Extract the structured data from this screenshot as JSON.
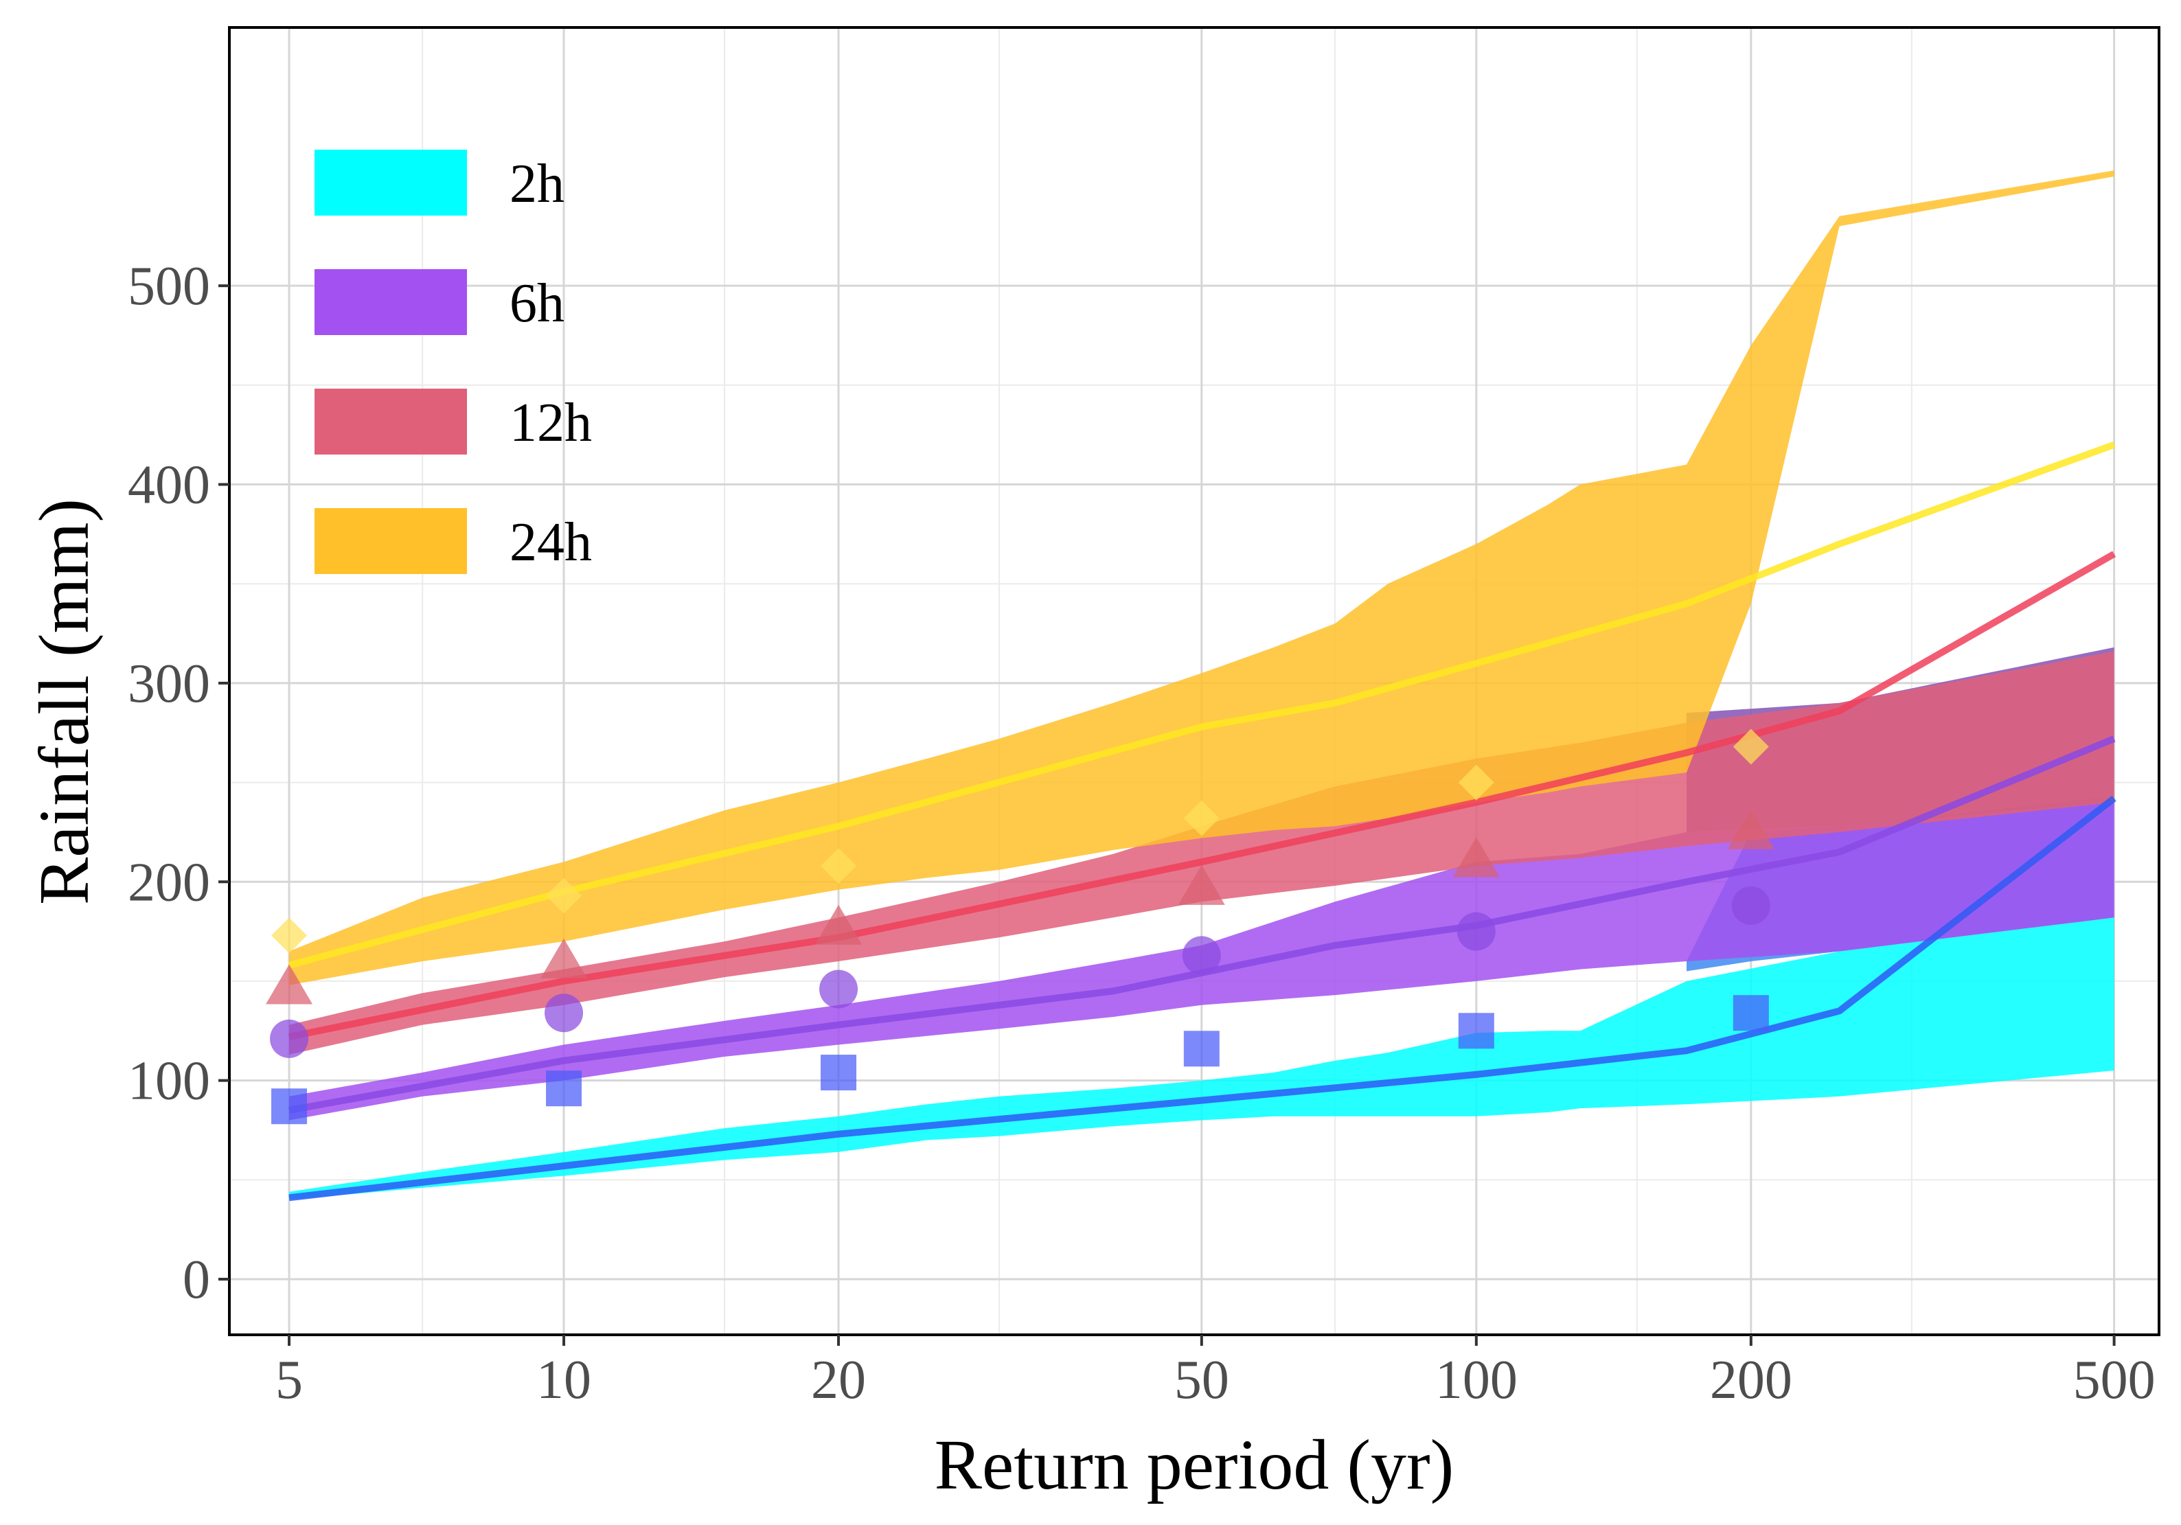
{
  "chart_data": {
    "type": "line",
    "title": "",
    "xlabel": "Return period (yr)",
    "ylabel": "Rainfall (mm)",
    "x_scale": "log",
    "xlim": [
      4.3,
      560
    ],
    "ylim": [
      -28,
      630
    ],
    "x_ticks": [
      5,
      10,
      20,
      50,
      100,
      200,
      500
    ],
    "x_tick_labels": [
      "5",
      "10",
      "20",
      "50",
      "100",
      "200",
      "500"
    ],
    "x_minor_ticks": [
      7,
      15,
      30,
      70,
      150,
      300
    ],
    "y_ticks": [
      0,
      100,
      200,
      300,
      400,
      500
    ],
    "y_tick_labels": [
      "0",
      "100",
      "200",
      "300",
      "400",
      "500"
    ],
    "y_minor_ticks": [
      50,
      150,
      250,
      350,
      450
    ],
    "grid": true,
    "legend_position": "top-left",
    "series": [
      {
        "name": "2h",
        "band_color": "#00FFFF",
        "line_color": "#2F5BF5",
        "point_color": "#4A5CF8",
        "marker": "square",
        "band_x": [
          5,
          7,
          10,
          15,
          20,
          25,
          30,
          40,
          50,
          60,
          70,
          80,
          100,
          120,
          130,
          170,
          250,
          500
        ],
        "band_lower": [
          40,
          46,
          52,
          60,
          64,
          70,
          72,
          77,
          80,
          82,
          82,
          82,
          82,
          84,
          86,
          88,
          92,
          105
        ],
        "band_upper": [
          44,
          54,
          64,
          76,
          82,
          88,
          92,
          96,
          100,
          104,
          110,
          114,
          124,
          125,
          125,
          150,
          165,
          182
        ],
        "band2_x": [
          170,
          200,
          250,
          500
        ],
        "band2_lower": [
          155,
          160,
          165,
          182
        ],
        "band2_upper": [
          160,
          225,
          228,
          243
        ],
        "band2_color": "#4A90F2",
        "line_x": [
          5,
          10,
          20,
          50,
          100,
          170,
          250,
          500
        ],
        "line_y": [
          41,
          57,
          73,
          90,
          103,
          115,
          135,
          242
        ],
        "points_x": [
          5,
          10,
          20,
          50,
          100,
          200
        ],
        "points_y": [
          87,
          96,
          104,
          116,
          125,
          134
        ]
      },
      {
        "name": "6h",
        "band_color": "#A351F0",
        "line_color": "#8A49E4",
        "point_color": "#8A4BE0",
        "marker": "circle",
        "band_x": [
          5,
          7,
          10,
          15,
          20,
          30,
          40,
          50,
          70,
          100,
          130,
          170,
          250,
          500
        ],
        "band_lower": [
          80,
          92,
          100,
          112,
          118,
          126,
          132,
          138,
          143,
          150,
          156,
          160,
          165,
          182
        ],
        "band_upper": [
          92,
          104,
          118,
          130,
          138,
          150,
          160,
          168,
          190,
          210,
          214,
          225,
          228,
          240
        ],
        "band2_x": [
          170,
          250,
          500
        ],
        "band2_lower": [
          225,
          228,
          240
        ],
        "band2_upper": [
          285,
          290,
          318
        ],
        "band2_color": "#8B5CB8",
        "line_x": [
          5,
          10,
          20,
          40,
          70,
          100,
          170,
          250,
          500
        ],
        "line_y": [
          85,
          110,
          128,
          145,
          168,
          178,
          200,
          215,
          272
        ],
        "points_x": [
          5,
          10,
          20,
          50,
          100,
          200
        ],
        "points_y": [
          121,
          134,
          146,
          163,
          175,
          188
        ]
      },
      {
        "name": "12h",
        "band_color": "#E0607A",
        "line_color": "#F0405A",
        "point_color": "#D95F70",
        "marker": "triangle",
        "band_x": [
          5,
          7,
          10,
          15,
          20,
          30,
          40,
          50,
          70,
          100,
          130,
          170,
          250,
          500
        ],
        "band_lower": [
          113,
          128,
          138,
          152,
          160,
          172,
          182,
          190,
          198,
          208,
          212,
          218,
          225,
          240
        ],
        "band_upper": [
          128,
          144,
          156,
          170,
          182,
          200,
          214,
          228,
          248,
          262,
          270,
          280,
          290,
          316
        ],
        "line_x": [
          5,
          10,
          20,
          50,
          100,
          170,
          250,
          500
        ],
        "line_y": [
          122,
          150,
          172,
          210,
          240,
          265,
          286,
          365
        ],
        "points_x": [
          5,
          10,
          20,
          50,
          100,
          200
        ],
        "points_y": [
          146,
          159,
          176,
          196,
          210,
          224
        ]
      },
      {
        "name": "24h",
        "band_color": "#FFC02A",
        "line_color": "#FFE820",
        "point_color": "#FFE05A",
        "marker": "diamond",
        "band_x": [
          5,
          7,
          10,
          15,
          20,
          25,
          30,
          40,
          50,
          60,
          70,
          80,
          100,
          120,
          130,
          170,
          200,
          250,
          500
        ],
        "band_lower": [
          148,
          160,
          170,
          186,
          196,
          202,
          206,
          216,
          222,
          226,
          228,
          232,
          240,
          245,
          248,
          255,
          340,
          530,
          555
        ],
        "band_upper": [
          165,
          192,
          210,
          236,
          250,
          262,
          272,
          290,
          305,
          318,
          330,
          350,
          370,
          390,
          400,
          410,
          470,
          535,
          558
        ],
        "line_x": [
          5,
          10,
          20,
          50,
          70,
          100,
          170,
          250,
          500
        ],
        "line_y": [
          158,
          195,
          228,
          278,
          290,
          310,
          340,
          370,
          420
        ],
        "points_x": [
          5,
          10,
          20,
          50,
          100,
          200
        ],
        "points_y": [
          173,
          193,
          208,
          232,
          250,
          268
        ]
      }
    ]
  }
}
